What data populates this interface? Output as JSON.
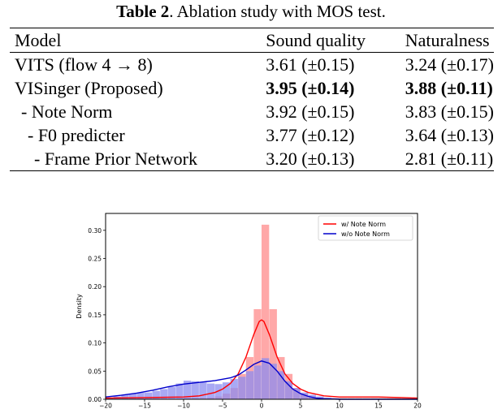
{
  "table": {
    "label": "Table 2",
    "caption": ". Ablation study with MOS test.",
    "headers": [
      "Model",
      "Sound quality",
      "Naturalness"
    ],
    "rows": [
      {
        "model": "VITS (flow 4 → 8)",
        "sound": "3.61 (±0.15)",
        "nat": "3.24 (±0.17)",
        "bold": false
      },
      {
        "model": "VISinger (Proposed)",
        "sound": "3.95 (±0.14)",
        "nat": "3.88 (±0.11)",
        "bold": true
      },
      {
        "model": " - Note Norm",
        "sound": "3.92 (±0.15)",
        "nat": "3.83 (±0.15)",
        "bold": false
      },
      {
        "model": "  - F0 predicter",
        "sound": "3.77 (±0.12)",
        "nat": "3.64 (±0.13)",
        "bold": false
      },
      {
        "model": "   - Frame Prior Network",
        "sound": "3.20 (±0.13)",
        "nat": "2.81 (±0.11)",
        "bold": false
      }
    ]
  },
  "chart_data": {
    "type": "histogram",
    "ylabel": "Density",
    "xlim": [
      -20,
      20
    ],
    "ylim": [
      0,
      0.33
    ],
    "xticks": [
      -20,
      -15,
      -10,
      -5,
      0,
      5,
      10,
      15,
      20
    ],
    "yticks": [
      "0.00",
      "0.05",
      "0.10",
      "0.15",
      "0.20",
      "0.25",
      "0.30"
    ],
    "legend_position": "top-right",
    "series": [
      {
        "name": "w/ Note Norm",
        "color": "#ff0000",
        "bar_color": "#ff9999",
        "bin_width": 1,
        "bins": [
          [
            -20,
            0.002
          ],
          [
            -19,
            0.002
          ],
          [
            -18,
            0.002
          ],
          [
            -17,
            0.002
          ],
          [
            -16,
            0.002
          ],
          [
            -15,
            0.002
          ],
          [
            -14,
            0.002
          ],
          [
            -13,
            0.002
          ],
          [
            -12,
            0.002
          ],
          [
            -11,
            0.002
          ],
          [
            -10,
            0.002
          ],
          [
            -9,
            0.002
          ],
          [
            -8,
            0.002
          ],
          [
            -7,
            0.003
          ],
          [
            -6,
            0.005
          ],
          [
            -5,
            0.01
          ],
          [
            -4,
            0.02
          ],
          [
            -3,
            0.045
          ],
          [
            -2,
            0.075
          ],
          [
            -1,
            0.16
          ],
          [
            0,
            0.31
          ],
          [
            1,
            0.16
          ],
          [
            2,
            0.075
          ],
          [
            3,
            0.045
          ],
          [
            4,
            0.02
          ],
          [
            5,
            0.01
          ],
          [
            6,
            0.005
          ],
          [
            7,
            0.003
          ],
          [
            8,
            0.002
          ],
          [
            9,
            0.002
          ],
          [
            10,
            0.002
          ],
          [
            11,
            0.002
          ],
          [
            12,
            0.002
          ],
          [
            13,
            0.002
          ],
          [
            14,
            0.002
          ],
          [
            15,
            0.002
          ],
          [
            16,
            0.002
          ],
          [
            17,
            0.002
          ],
          [
            18,
            0.002
          ],
          [
            19,
            0.002
          ]
        ],
        "kde": [
          [
            -20,
            0.002
          ],
          [
            -15,
            0.003
          ],
          [
            -10,
            0.004
          ],
          [
            -8,
            0.006
          ],
          [
            -6,
            0.012
          ],
          [
            -5,
            0.018
          ],
          [
            -4,
            0.028
          ],
          [
            -3,
            0.045
          ],
          [
            -2,
            0.075
          ],
          [
            -1,
            0.115
          ],
          [
            -0.3,
            0.138
          ],
          [
            0,
            0.141
          ],
          [
            0.3,
            0.138
          ],
          [
            1,
            0.115
          ],
          [
            2,
            0.075
          ],
          [
            3,
            0.045
          ],
          [
            4,
            0.028
          ],
          [
            5,
            0.018
          ],
          [
            6,
            0.012
          ],
          [
            8,
            0.006
          ],
          [
            10,
            0.004
          ],
          [
            12,
            0.004
          ],
          [
            15,
            0.004
          ],
          [
            18,
            0.003
          ],
          [
            20,
            0.002
          ]
        ]
      },
      {
        "name": "w/o Note Norm",
        "color": "#0000cc",
        "bar_color": "#8c8cf0",
        "bin_width": 1,
        "bins": [
          [
            -20,
            0.003
          ],
          [
            -19,
            0.005
          ],
          [
            -18,
            0.008
          ],
          [
            -17,
            0.01
          ],
          [
            -16,
            0.012
          ],
          [
            -15,
            0.012
          ],
          [
            -14,
            0.015
          ],
          [
            -13,
            0.018
          ],
          [
            -12,
            0.022
          ],
          [
            -11,
            0.028
          ],
          [
            -10,
            0.033
          ],
          [
            -9,
            0.032
          ],
          [
            -8,
            0.03
          ],
          [
            -7,
            0.028
          ],
          [
            -6,
            0.027
          ],
          [
            -5,
            0.03
          ],
          [
            -4,
            0.036
          ],
          [
            -3,
            0.04
          ],
          [
            -2,
            0.05
          ],
          [
            -1,
            0.06
          ],
          [
            0,
            0.073
          ],
          [
            1,
            0.063
          ],
          [
            2,
            0.05
          ],
          [
            3,
            0.032
          ],
          [
            4,
            0.02
          ],
          [
            5,
            0.012
          ],
          [
            6,
            0.008
          ],
          [
            7,
            0.005
          ],
          [
            8,
            0.003
          ],
          [
            9,
            0.002
          ],
          [
            10,
            0.001
          ],
          [
            11,
            0.001
          ],
          [
            12,
            0.001
          ],
          [
            13,
            0.001
          ],
          [
            14,
            0.001
          ],
          [
            15,
            0.001
          ],
          [
            16,
            0.001
          ],
          [
            17,
            0.001
          ],
          [
            18,
            0.001
          ],
          [
            19,
            0.001
          ]
        ],
        "kde": [
          [
            -20,
            0.004
          ],
          [
            -18,
            0.007
          ],
          [
            -16,
            0.011
          ],
          [
            -14,
            0.016
          ],
          [
            -12,
            0.022
          ],
          [
            -10,
            0.027
          ],
          [
            -8,
            0.03
          ],
          [
            -6,
            0.033
          ],
          [
            -4,
            0.038
          ],
          [
            -3,
            0.043
          ],
          [
            -2,
            0.052
          ],
          [
            -1,
            0.062
          ],
          [
            0,
            0.068
          ],
          [
            1,
            0.064
          ],
          [
            2,
            0.05
          ],
          [
            3,
            0.032
          ],
          [
            4,
            0.018
          ],
          [
            5,
            0.01
          ],
          [
            6,
            0.005
          ],
          [
            7,
            0.002
          ],
          [
            8,
            0.001
          ],
          [
            10,
            0.0
          ],
          [
            20,
            0.0
          ]
        ]
      }
    ]
  }
}
